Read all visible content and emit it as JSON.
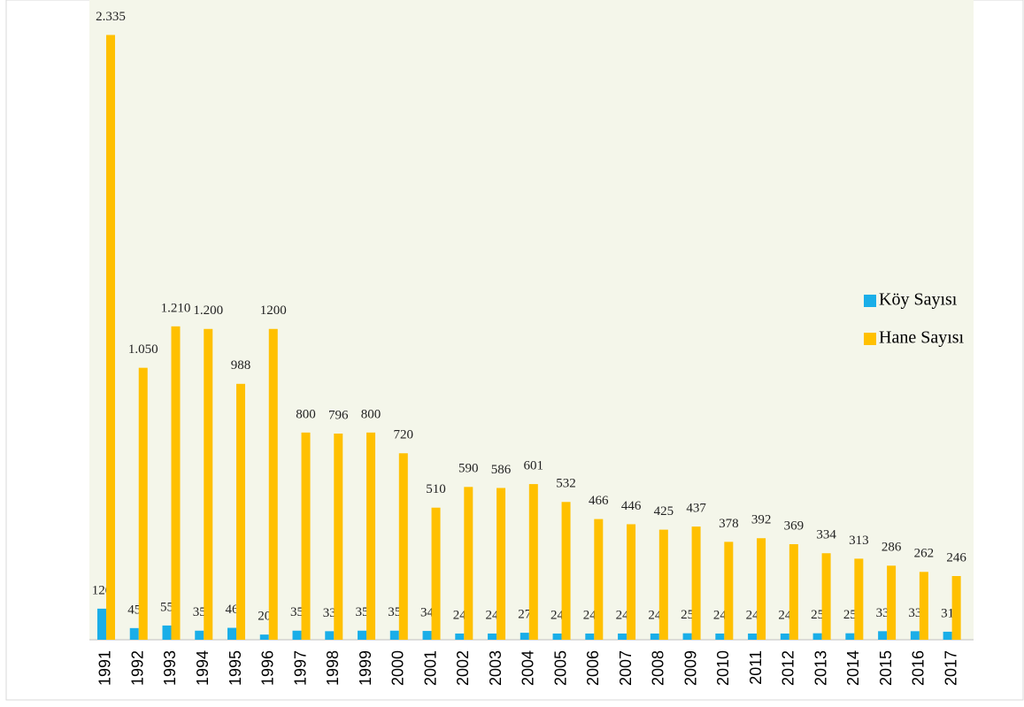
{
  "chart_data": {
    "type": "bar",
    "categories": [
      "1991",
      "1992",
      "1993",
      "1994",
      "1995",
      "1996",
      "1997",
      "1998",
      "1999",
      "2000",
      "2001",
      "2002",
      "2003",
      "2004",
      "2005",
      "2006",
      "2007",
      "2008",
      "2009",
      "2010",
      "2011",
      "2012",
      "2013",
      "2014",
      "2015",
      "2016",
      "2017"
    ],
    "series": [
      {
        "name": "Köy Sayısı",
        "color": "#1aaee8",
        "values": [
          120,
          45,
          55,
          35,
          46,
          20,
          35,
          33,
          35,
          35,
          34,
          24,
          24,
          27,
          24,
          24,
          24,
          24,
          25,
          24,
          24,
          24,
          25,
          25,
          33,
          33,
          31
        ]
      },
      {
        "name": "Hane Sayısı",
        "color": "#ffc000",
        "values": [
          2335,
          1050,
          1210,
          1200,
          988,
          1200,
          800,
          796,
          800,
          720,
          510,
          590,
          586,
          601,
          532,
          466,
          446,
          425,
          437,
          378,
          392,
          369,
          334,
          313,
          286,
          262,
          246
        ],
        "value_labels": [
          "2.335",
          "1.050",
          "1.210",
          "1.200",
          "988",
          "1200",
          "800",
          "796",
          "800",
          "720",
          "510",
          "590",
          "586",
          "601",
          "532",
          "466",
          "446",
          "425",
          "437",
          "378",
          "392",
          "369",
          "334",
          "313",
          "286",
          "262",
          "246"
        ]
      }
    ],
    "ylim": [
      0,
      2470
    ],
    "legend": "right"
  }
}
